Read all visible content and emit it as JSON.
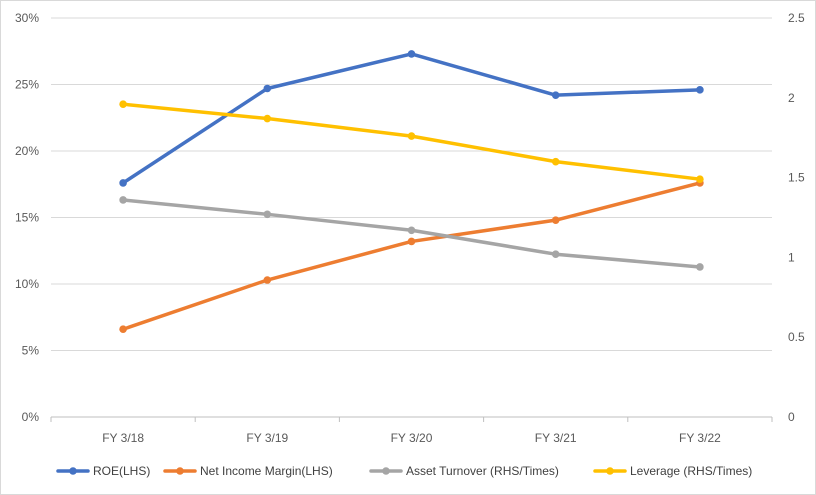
{
  "chart_data": {
    "type": "line",
    "title": "",
    "xlabel": "",
    "ylabel": "",
    "ylabel_right": "",
    "categories": [
      "FY 3/18",
      "FY 3/19",
      "FY 3/20",
      "FY 3/21",
      "FY 3/22"
    ],
    "ylim_left": [
      0,
      30
    ],
    "ylim_right": [
      0,
      2.5
    ],
    "y_ticks_left": [
      "0%",
      "5%",
      "10%",
      "15%",
      "20%",
      "25%",
      "30%"
    ],
    "y_ticks_right": [
      "0",
      "0.5",
      "1",
      "1.5",
      "2",
      "2.5"
    ],
    "grid": "horizontal",
    "legend_position": "bottom",
    "series": [
      {
        "name": "ROE(LHS)",
        "axis": "left",
        "unit": "%",
        "color": "#4472c4",
        "values": [
          17.6,
          24.7,
          27.3,
          24.2,
          24.6
        ]
      },
      {
        "name": "Net Income Margin(LHS)",
        "axis": "left",
        "unit": "%",
        "color": "#ed7d31",
        "values": [
          6.6,
          10.3,
          13.2,
          14.8,
          17.6
        ]
      },
      {
        "name": "Asset Turnover (RHS/Times)",
        "axis": "right",
        "unit": "times",
        "color": "#a5a5a5",
        "values": [
          1.36,
          1.27,
          1.17,
          1.02,
          0.94
        ]
      },
      {
        "name": "Leverage (RHS/Times)",
        "axis": "right",
        "unit": "times",
        "color": "#ffc000",
        "values": [
          1.96,
          1.87,
          1.76,
          1.6,
          1.49
        ]
      }
    ]
  }
}
